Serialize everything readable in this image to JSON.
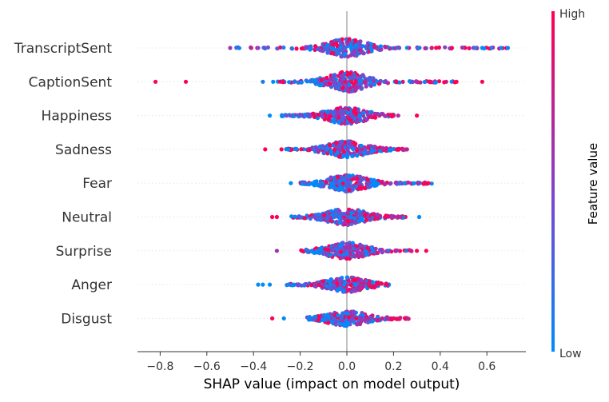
{
  "chart_data": {
    "type": "scatter",
    "subtype": "shap-beeswarm",
    "title": "",
    "xlabel": "SHAP value (impact on model output)",
    "ylabel": "",
    "xlim": [
      -0.88,
      0.76
    ],
    "xticks": [
      -0.8,
      -0.6,
      -0.4,
      -0.2,
      0.0,
      0.2,
      0.4,
      0.6
    ],
    "xtick_labels": [
      "−0.8",
      "−0.6",
      "−0.4",
      "−0.2",
      "0.0",
      "0.2",
      "0.4",
      "0.6"
    ],
    "zero_line": 0.0,
    "grid": false,
    "features": [
      {
        "name": "TranscriptSent",
        "min": -0.48,
        "max": 0.69,
        "spread": 0.5,
        "outliers": [
          {
            "x": -0.5,
            "v": 0.6
          },
          {
            "x": -0.41,
            "v": 0.8
          },
          {
            "x": -0.38,
            "v": 0.5
          },
          {
            "x": 0.45,
            "v": 1.0
          },
          {
            "x": 0.55,
            "v": 0.1
          },
          {
            "x": 0.58,
            "v": 0.0
          },
          {
            "x": 0.62,
            "v": 0.1
          },
          {
            "x": 0.66,
            "v": 0.0
          },
          {
            "x": 0.69,
            "v": 0.0
          }
        ]
      },
      {
        "name": "CaptionSent",
        "min": -0.32,
        "max": 0.47,
        "spread": 0.55,
        "outliers": [
          {
            "x": -0.82,
            "v": 1.0
          },
          {
            "x": -0.69,
            "v": 1.0
          },
          {
            "x": -0.36,
            "v": 0.1
          },
          {
            "x": 0.47,
            "v": 1.0
          },
          {
            "x": 0.58,
            "v": 1.0
          }
        ]
      },
      {
        "name": "Happiness",
        "min": -0.28,
        "max": 0.2,
        "spread": 0.45,
        "outliers": [
          {
            "x": -0.33,
            "v": 0.0
          },
          {
            "x": 0.22,
            "v": 0.7
          },
          {
            "x": 0.3,
            "v": 1.0
          }
        ]
      },
      {
        "name": "Sadness",
        "min": -0.27,
        "max": 0.26,
        "spread": 0.45,
        "outliers": [
          {
            "x": -0.35,
            "v": 1.0
          },
          {
            "x": -0.28,
            "v": 1.0
          }
        ]
      },
      {
        "name": "Fear",
        "min": -0.2,
        "max": 0.37,
        "spread": 0.45,
        "outliers": [
          {
            "x": -0.24,
            "v": 0.0
          },
          {
            "x": 0.35,
            "v": 1.0
          }
        ]
      },
      {
        "name": "Neutral",
        "min": -0.24,
        "max": 0.26,
        "spread": 0.45,
        "outliers": [
          {
            "x": -0.32,
            "v": 1.0
          },
          {
            "x": -0.3,
            "v": 1.0
          },
          {
            "x": 0.31,
            "v": 0.0
          }
        ]
      },
      {
        "name": "Surprise",
        "min": -0.21,
        "max": 0.28,
        "spread": 0.45,
        "outliers": [
          {
            "x": -0.3,
            "v": 0.6
          },
          {
            "x": 0.3,
            "v": 1.0
          },
          {
            "x": 0.34,
            "v": 1.0
          }
        ]
      },
      {
        "name": "Anger",
        "min": -0.26,
        "max": 0.18,
        "spread": 0.4,
        "outliers": [
          {
            "x": -0.38,
            "v": 0.0
          },
          {
            "x": -0.36,
            "v": 0.0
          },
          {
            "x": -0.33,
            "v": 0.0
          }
        ]
      },
      {
        "name": "Disgust",
        "min": -0.17,
        "max": 0.27,
        "spread": 0.4,
        "outliers": [
          {
            "x": -0.32,
            "v": 1.0
          },
          {
            "x": -0.27,
            "v": 0.0
          }
        ]
      }
    ],
    "colorbar": {
      "label": "Feature value",
      "high_label": "High",
      "low_label": "Low",
      "low_color": "#008bfb",
      "high_color": "#ff0052",
      "mid_color": "#8840c8"
    },
    "zero_line_color": "#999999",
    "row_guide_color": "#e6e6e6"
  }
}
